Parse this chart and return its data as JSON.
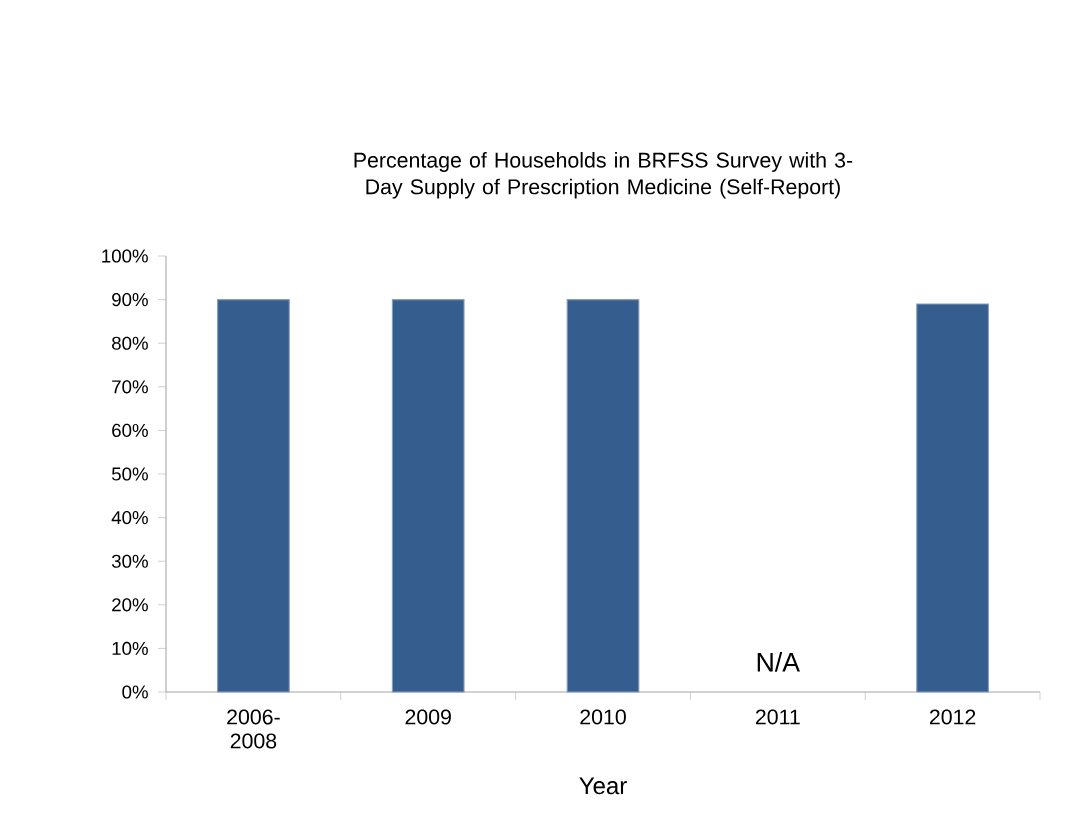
{
  "chart_data": {
    "type": "bar",
    "title": "Percentage of Households in BRFSS Survey with 3-Day Supply of Prescription Medicine (Self-Report)",
    "xlabel": "Year",
    "categories": [
      "2006-2008",
      "2009",
      "2010",
      "2011",
      "2012"
    ],
    "values": [
      90,
      90,
      90,
      null,
      89
    ],
    "color": "#355e8f",
    "ylim": [
      0,
      100
    ],
    "yticks": [
      {
        "value": 0,
        "label": "0%"
      },
      {
        "value": 10,
        "label": "10%"
      },
      {
        "value": 20,
        "label": "20%"
      },
      {
        "value": 30,
        "label": "30%"
      },
      {
        "value": 40,
        "label": "40%"
      },
      {
        "value": 50,
        "label": "50%"
      },
      {
        "value": 60,
        "label": "60%"
      },
      {
        "value": 70,
        "label": "70%"
      },
      {
        "value": 80,
        "label": "80%"
      },
      {
        "value": 90,
        "label": "90%"
      },
      {
        "value": 100,
        "label": "100%"
      }
    ],
    "annotations": [
      "N/A"
    ]
  }
}
